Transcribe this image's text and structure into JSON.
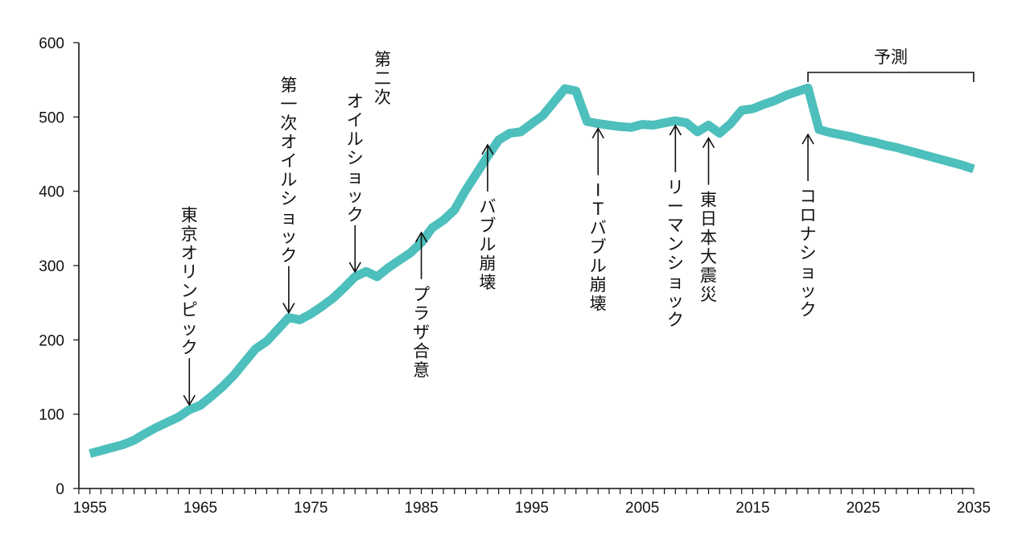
{
  "chart_data": {
    "type": "line",
    "title": "",
    "xlabel": "",
    "ylabel": "",
    "xlim": [
      1954,
      2035
    ],
    "ylim": [
      0,
      600
    ],
    "x_ticks": [
      1955,
      1965,
      1975,
      1985,
      1995,
      2005,
      2015,
      2025,
      2035
    ],
    "y_ticks": [
      0,
      100,
      200,
      300,
      400,
      500,
      600
    ],
    "grid": false,
    "line_color": "#4dbfbc",
    "series": [
      {
        "x": [
          1955,
          1956,
          1957,
          1958,
          1959,
          1960,
          1961,
          1962,
          1963,
          1964,
          1965,
          1966,
          1967,
          1968,
          1969,
          1970,
          1971,
          1972,
          1973,
          1974,
          1975,
          1976,
          1977,
          1978,
          1979,
          1980,
          1981,
          1982,
          1983,
          1984,
          1985,
          1986,
          1987,
          1988,
          1989,
          1990,
          1991,
          1992,
          1993,
          1994,
          1995,
          1996,
          1997,
          1998,
          1999,
          2000,
          2001,
          2002,
          2003,
          2004,
          2005,
          2006,
          2007,
          2008,
          2009,
          2010,
          2011,
          2012,
          2013,
          2014,
          2015,
          2016,
          2017,
          2018,
          2019,
          2020,
          2021,
          2022,
          2023,
          2024,
          2025,
          2026,
          2027,
          2028,
          2029,
          2030,
          2031,
          2032,
          2033,
          2034,
          2035
        ],
        "values": [
          47,
          51,
          55,
          59,
          65,
          74,
          82,
          89,
          96,
          106,
          112,
          124,
          137,
          152,
          170,
          188,
          198,
          214,
          230,
          227,
          235,
          245,
          256,
          270,
          285,
          292,
          285,
          297,
          307,
          317,
          331,
          351,
          361,
          375,
          401,
          424,
          447,
          469,
          478,
          480,
          491,
          502,
          520,
          538,
          535,
          494,
          491,
          489,
          487,
          486,
          490,
          489,
          492,
          495,
          492,
          480,
          489,
          478,
          491,
          509,
          511,
          517,
          522,
          529,
          534,
          539,
          483,
          479,
          476,
          473,
          469,
          466,
          462,
          459,
          455,
          451,
          447,
          443,
          439,
          435,
          430
        ]
      }
    ],
    "annotations": [
      {
        "x": 1964,
        "y": 106,
        "text": [
          "東",
          "京",
          "オ",
          "リ",
          "ン",
          "ピ",
          "ッ",
          "ク"
        ],
        "placement": "above",
        "arrow": "down"
      },
      {
        "x": 1973,
        "y": 230,
        "text": [
          "第",
          "一",
          "次",
          "オ",
          "イ",
          "ル",
          "シ",
          "ョ",
          "ッ",
          "ク"
        ],
        "placement": "above",
        "arrow": "down"
      },
      {
        "x": 1979,
        "y": 285,
        "text": [
          "オ",
          "イ",
          "ル",
          "シ",
          "ョ",
          "ッ",
          "ク"
        ],
        "placement": "above",
        "arrow": "down"
      },
      {
        "x": 1981.5,
        "y": 0,
        "text": [
          "第",
          "二",
          "次"
        ],
        "placement": "above",
        "arrow": "none"
      },
      {
        "x": 1985,
        "y": 351,
        "text": [
          "プ",
          "ラ",
          "ザ",
          "合",
          "意"
        ],
        "placement": "below",
        "arrow": "up"
      },
      {
        "x": 1991,
        "y": 469,
        "text": [
          "バ",
          "ブ",
          "ル",
          "崩",
          "壊"
        ],
        "placement": "below",
        "arrow": "up"
      },
      {
        "x": 2001,
        "y": 491,
        "text": [
          "I",
          "T",
          "バ",
          "ブ",
          "ル",
          "崩",
          "壊"
        ],
        "placement": "below",
        "arrow": "up"
      },
      {
        "x": 2008,
        "y": 495,
        "text": [
          "リ",
          "ー",
          "マ",
          "ン",
          "シ",
          "ョ",
          "ッ",
          "ク"
        ],
        "placement": "below",
        "arrow": "up"
      },
      {
        "x": 2011,
        "y": 478,
        "text": [
          "東",
          "日",
          "本",
          "大",
          "震",
          "災"
        ],
        "placement": "below",
        "arrow": "up"
      },
      {
        "x": 2020,
        "y": 483,
        "text": [
          "コ",
          "ロ",
          "ナ",
          "シ",
          "ョ",
          "ッ",
          "ク"
        ],
        "placement": "below",
        "arrow": "up"
      }
    ],
    "forecast": {
      "label": "予測",
      "x_start": 2020,
      "x_end": 2035
    }
  }
}
